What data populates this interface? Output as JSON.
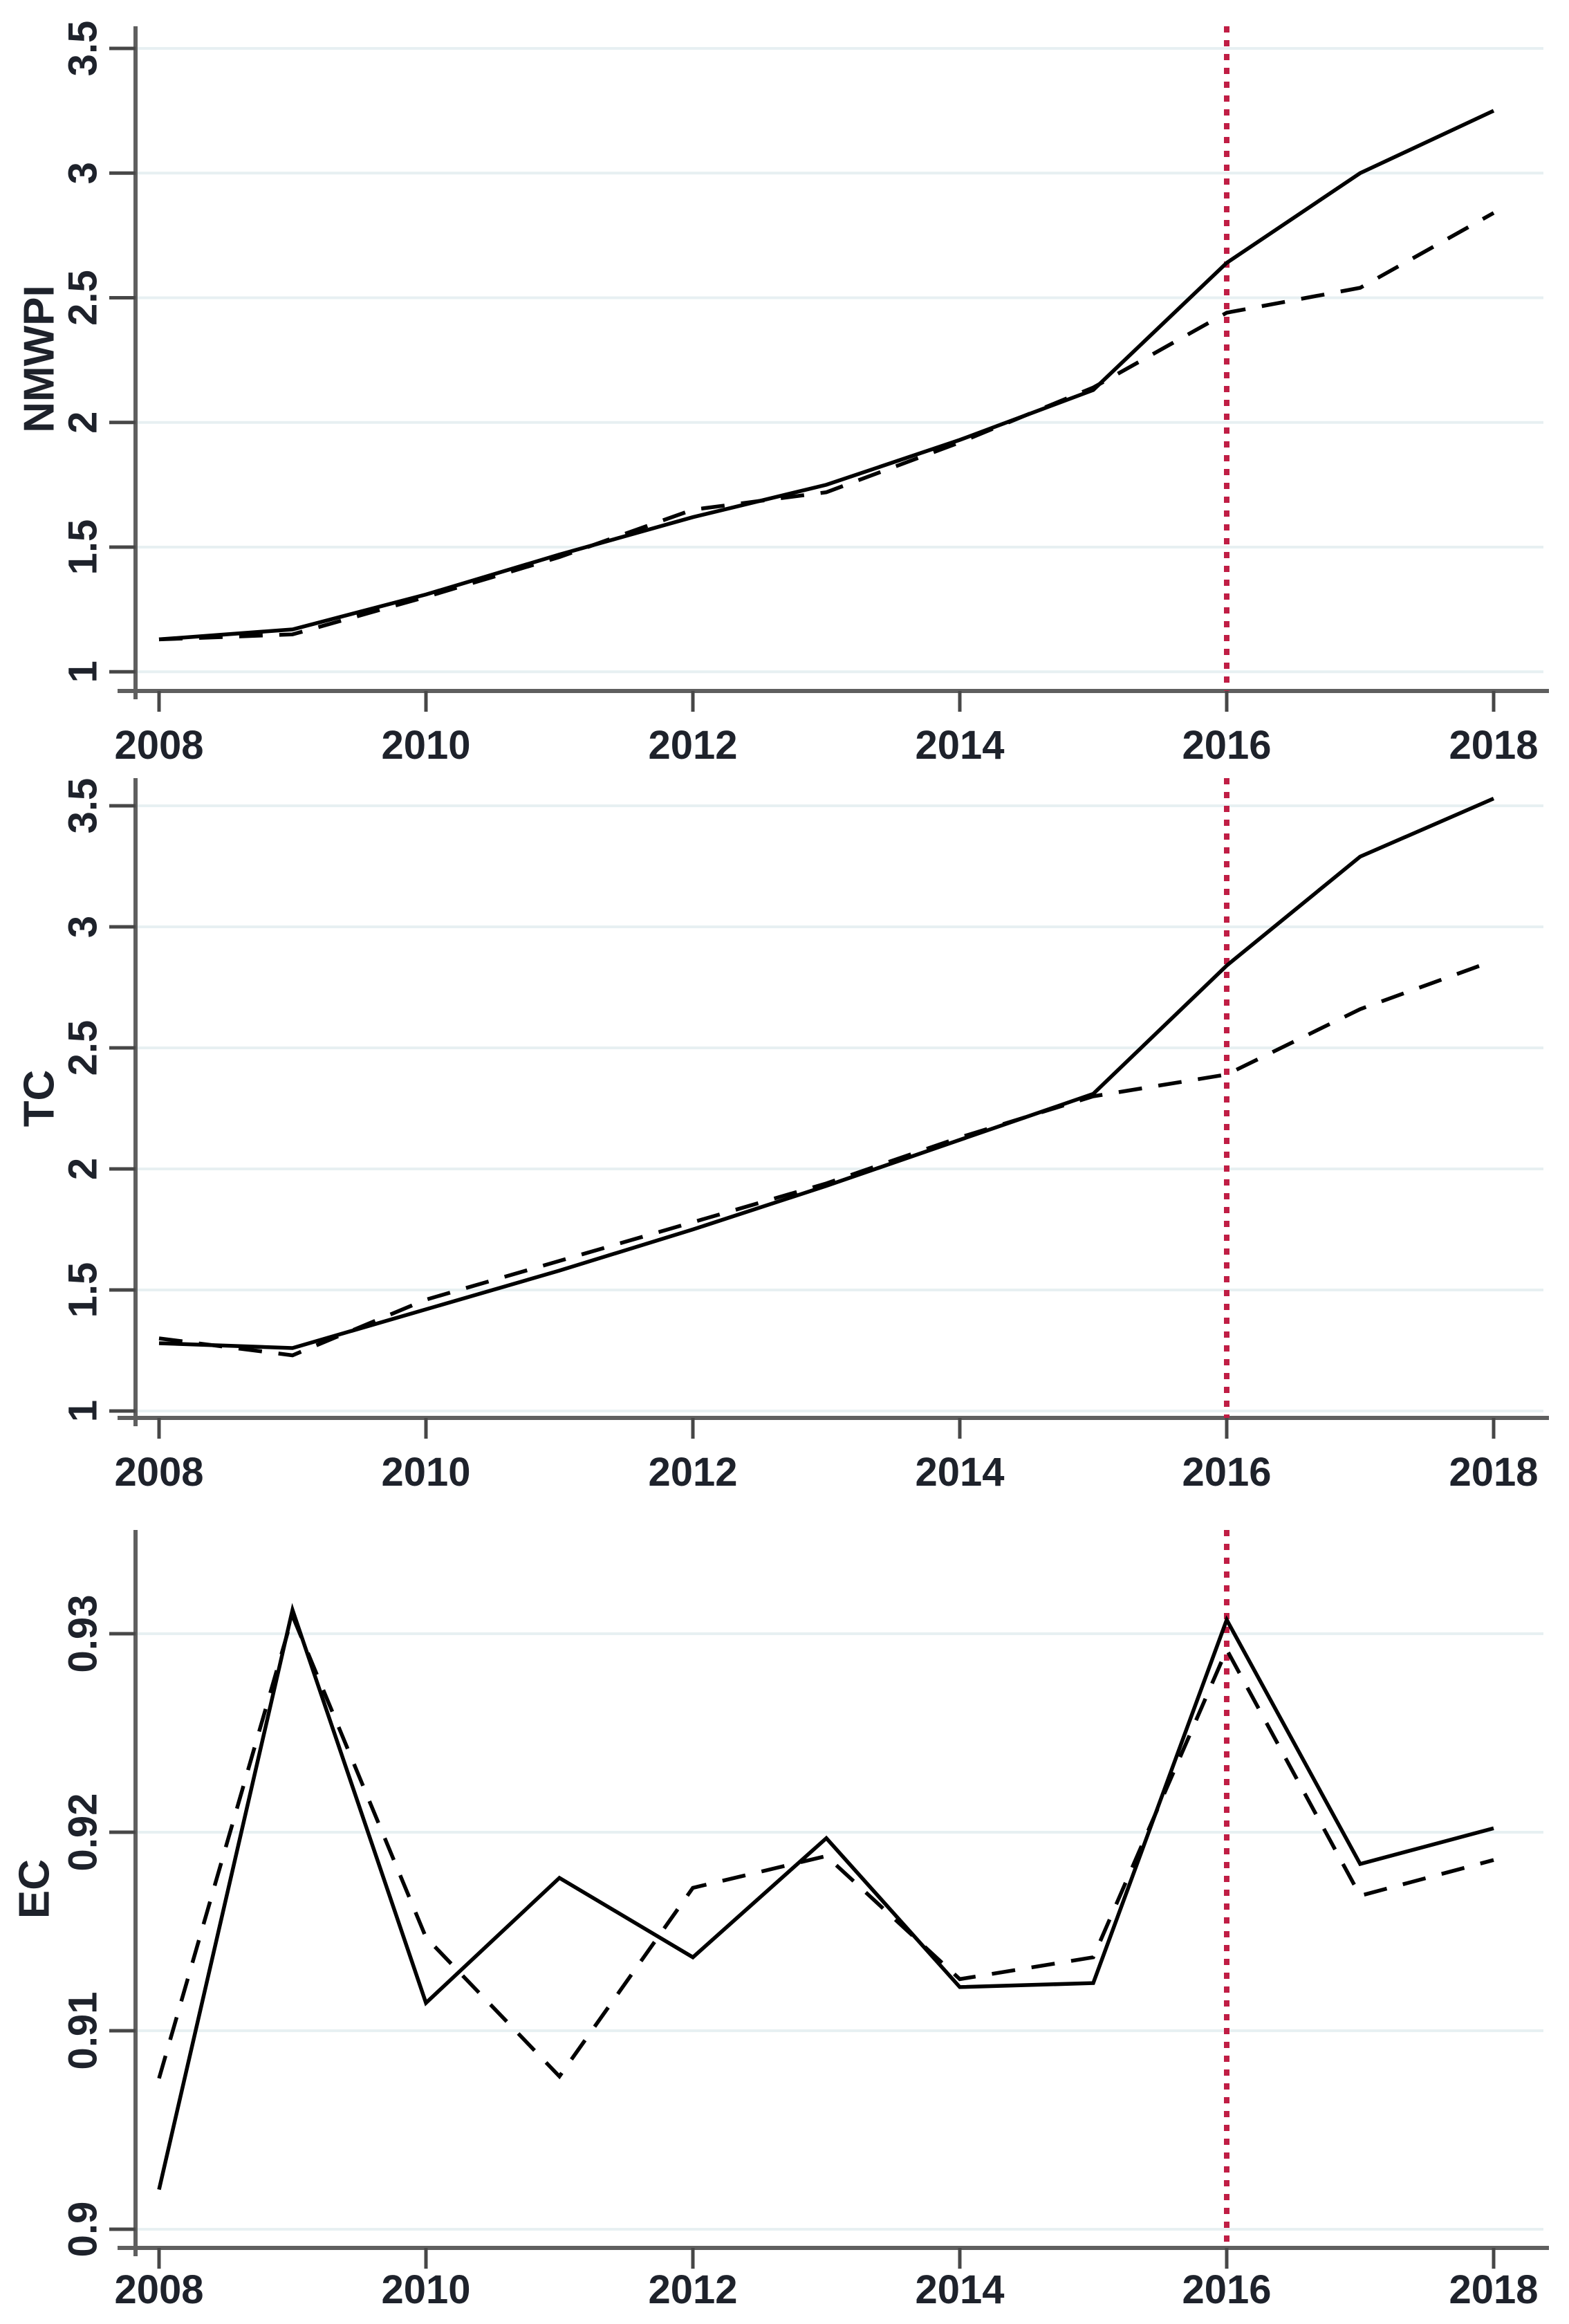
{
  "colors": {
    "background": "#ffffff",
    "series_line": "#000000",
    "gridline": "#e7f0f2",
    "axis": "#5f5f5f",
    "tick": "#474747",
    "text": "#1e222b",
    "treatment_vline": "#c01e45"
  },
  "chart_data": [
    {
      "type": "line",
      "title": "",
      "xlabel": "",
      "ylabel": "NMWPI",
      "x": [
        2008,
        2009,
        2010,
        2011,
        2012,
        2013,
        2014,
        2015,
        2016,
        2017,
        2018
      ],
      "xticks": [
        2008,
        2010,
        2012,
        2014,
        2016,
        2018
      ],
      "yticks": [
        1,
        1.5,
        2,
        2.5,
        3,
        3.5
      ],
      "ytick_labels": [
        "1",
        "1.5",
        "2",
        "2.5",
        "3",
        "3.5"
      ],
      "ylim": [
        0.93,
        3.59
      ],
      "xlim": [
        2007.8,
        2018.37
      ],
      "grid": true,
      "legend": "none",
      "vline_x": 2016,
      "series": [
        {
          "name": "solid",
          "style": "solid",
          "values": [
            1.13,
            1.17,
            1.31,
            1.47,
            1.62,
            1.75,
            1.93,
            2.13,
            2.64,
            3.0,
            3.25
          ]
        },
        {
          "name": "dashed",
          "style": "dashed",
          "values": [
            1.13,
            1.15,
            1.3,
            1.46,
            1.65,
            1.72,
            1.92,
            2.14,
            2.44,
            2.54,
            2.84
          ]
        }
      ]
    },
    {
      "type": "line",
      "title": "",
      "xlabel": "",
      "ylabel": "TC",
      "x": [
        2008,
        2009,
        2010,
        2011,
        2012,
        2013,
        2014,
        2015,
        2016,
        2017,
        2018
      ],
      "xticks": [
        2008,
        2010,
        2012,
        2014,
        2016,
        2018
      ],
      "yticks": [
        1,
        1.5,
        2,
        2.5,
        3,
        3.5
      ],
      "ytick_labels": [
        "1",
        "1.5",
        "2",
        "2.5",
        "3",
        "3.5"
      ],
      "ylim": [
        0.97,
        3.61
      ],
      "xlim": [
        2007.8,
        2018.37
      ],
      "grid": true,
      "legend": "none",
      "vline_x": 2016,
      "series": [
        {
          "name": "solid",
          "style": "solid",
          "values": [
            1.28,
            1.26,
            1.42,
            1.58,
            1.75,
            1.93,
            2.12,
            2.31,
            2.84,
            3.29,
            3.53
          ]
        },
        {
          "name": "dashed",
          "style": "dashed",
          "values": [
            1.3,
            1.23,
            1.46,
            1.62,
            1.78,
            1.94,
            2.13,
            2.3,
            2.39,
            2.66,
            2.86
          ]
        }
      ]
    },
    {
      "type": "line",
      "title": "",
      "xlabel": "",
      "ylabel": "EC",
      "x": [
        2008,
        2009,
        2010,
        2011,
        2012,
        2013,
        2014,
        2015,
        2016,
        2017,
        2018
      ],
      "xticks": [
        2008,
        2010,
        2012,
        2014,
        2016,
        2018
      ],
      "yticks": [
        0.9,
        0.91,
        0.92,
        0.93
      ],
      "ytick_labels": [
        "0.9",
        "0.91",
        "0.92",
        "0.93"
      ],
      "ylim": [
        0.9,
        0.935
      ],
      "xlim": [
        2007.8,
        2018.37
      ],
      "grid": true,
      "legend": "none",
      "vline_x": 2016,
      "series": [
        {
          "name": "solid",
          "style": "solid",
          "values": [
            0.902,
            0.9312,
            0.9114,
            0.9177,
            0.9137,
            0.9197,
            0.9122,
            0.9124,
            0.9307,
            0.9184,
            0.9202
          ]
        },
        {
          "name": "dashed",
          "style": "dashed",
          "values": [
            0.9076,
            0.9309,
            0.9147,
            0.9077,
            0.9172,
            0.9188,
            0.9126,
            0.9137,
            0.9292,
            0.9168,
            0.9186
          ]
        }
      ]
    }
  ]
}
